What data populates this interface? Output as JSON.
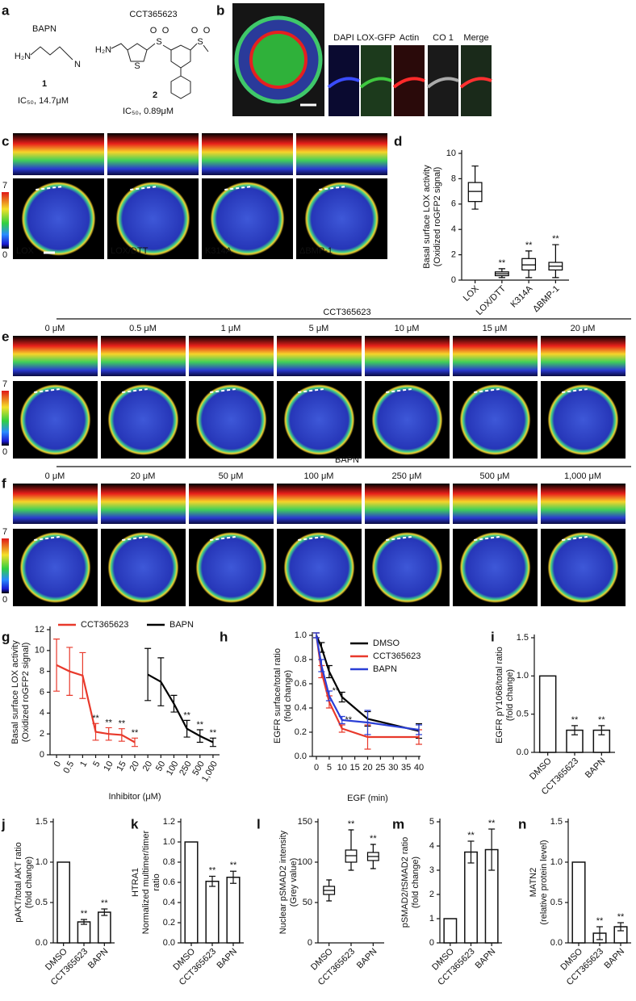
{
  "panel_labels": [
    "a",
    "b",
    "c",
    "d",
    "e",
    "f",
    "g",
    "h",
    "i",
    "j",
    "k",
    "l",
    "m",
    "n"
  ],
  "compounds": [
    {
      "name": "BAPN",
      "number": "1",
      "ic50": "IC₅₀, 14.7μM",
      "atoms": [
        "H₂N",
        "N"
      ]
    },
    {
      "name": "CCT365623",
      "number": "2",
      "ic50": "IC₅₀, 0.89μM",
      "atoms": [
        "H₂N",
        "S",
        "S",
        "O",
        "O",
        "S",
        "O",
        "O"
      ]
    }
  ],
  "panel_b": {
    "channels": [
      {
        "name": "DAPI",
        "color": "#3a4cff"
      },
      {
        "name": "LOX-GFP",
        "color": "#3fc83f"
      },
      {
        "name": "Actin",
        "color": "#ff2a2a"
      },
      {
        "name": "CO 1",
        "color": "#aaaaaa"
      },
      {
        "name": "Merge",
        "color": "#111111"
      }
    ]
  },
  "panel_c": {
    "labels": [
      "LOX",
      "LOX/DTT",
      "K314A",
      "ΔBMP-1"
    ],
    "colorbar": [
      0,
      7
    ]
  },
  "panel_e": {
    "title": "CCT365623",
    "labels": [
      "0 μM",
      "0.5 μM",
      "1 μM",
      "5 μM",
      "10 μM",
      "15 μM",
      "20 μM"
    ],
    "colorbar": [
      0,
      7
    ]
  },
  "panel_f": {
    "title": "BAPN",
    "labels": [
      "0 μM",
      "20 μM",
      "50 μM",
      "100 μM",
      "250 μM",
      "500 μM",
      "1,000 μM"
    ],
    "colorbar": [
      0,
      7
    ]
  },
  "chart_data": [
    {
      "type": "box",
      "ylabel": [
        "Basal surface LOX activity",
        "(Oxidized roGFP2 signal)"
      ],
      "categories": [
        "LOX",
        "LOX/DTT",
        "K314A",
        "ΔBMP-1"
      ],
      "min": [
        5.6,
        0.2,
        0.2,
        0.2
      ],
      "q1": [
        6.2,
        0.35,
        0.8,
        0.8
      ],
      "median": [
        7,
        0.5,
        1.2,
        1.1
      ],
      "q3": [
        7.7,
        0.65,
        1.7,
        1.4
      ],
      "max": [
        9,
        0.9,
        2.3,
        2.8
      ],
      "annotations": [
        null,
        "**",
        "**",
        "**"
      ],
      "ylim": [
        0,
        10
      ],
      "yticks": [
        0,
        2,
        4,
        6,
        8,
        10
      ],
      "color": "#000000"
    },
    {
      "type": "line",
      "ylabel": [
        "Basal surface LOX activity",
        "(Oxidized roGFP2 signal)"
      ],
      "xlabel": "Inhibitor (μM)",
      "categories": [
        "0",
        "0.5",
        "1",
        "5",
        "10",
        "15",
        "20",
        "20",
        "50",
        "100",
        "250",
        "500",
        "1,000"
      ],
      "series": [
        {
          "name": "CCT365623",
          "color": "#e8392b",
          "values": [
            8.6,
            8,
            7.6,
            2.2,
            2,
            1.9,
            1.2,
            null,
            null,
            null,
            null,
            null,
            null
          ],
          "errors": [
            2.5,
            2.3,
            2.2,
            0.8,
            0.6,
            0.6,
            0.4,
            null,
            null,
            null,
            null,
            null,
            null
          ],
          "annotations": [
            null,
            null,
            null,
            "**",
            "**",
            "**",
            "**",
            null,
            null,
            null,
            null,
            null,
            null
          ]
        },
        {
          "name": "BAPN",
          "color": "#000000",
          "values": [
            null,
            null,
            null,
            null,
            null,
            null,
            null,
            7.7,
            7,
            4.9,
            2.5,
            1.8,
            1.2
          ],
          "errors": [
            null,
            null,
            null,
            null,
            null,
            null,
            null,
            2.5,
            2.3,
            0.8,
            0.8,
            0.6,
            0.4
          ],
          "annotations": [
            null,
            null,
            null,
            null,
            null,
            null,
            null,
            null,
            null,
            null,
            "**",
            "**",
            "**"
          ]
        }
      ],
      "ylim": [
        0,
        12
      ],
      "yticks": [
        0,
        2,
        4,
        6,
        8,
        10,
        12
      ],
      "legend": "top"
    },
    {
      "type": "line",
      "ylabel": [
        "EGFR surface/total ratio",
        "(fold change)"
      ],
      "xlabel": "EGF (min)",
      "x": [
        0,
        2,
        5,
        10,
        20,
        40
      ],
      "series": [
        {
          "name": "DMSO",
          "color": "#000000",
          "values": [
            1.0,
            0.9,
            0.7,
            0.49,
            0.31,
            0.21
          ],
          "errors": [
            0.02,
            0.04,
            0.05,
            0.04,
            0.06,
            0.06
          ],
          "annotations": [
            null,
            null,
            null,
            null,
            null,
            null
          ]
        },
        {
          "name": "CCT365623",
          "color": "#e8392b",
          "values": [
            1.0,
            0.7,
            0.45,
            0.23,
            0.16,
            0.16
          ],
          "errors": [
            0.02,
            0.05,
            0.05,
            0.03,
            0.1,
            0.06
          ],
          "annotations": [
            null,
            null,
            "**",
            "**",
            null,
            null
          ]
        },
        {
          "name": "BAPN",
          "color": "#2a3fd6",
          "values": [
            1.0,
            0.75,
            0.5,
            0.3,
            0.28,
            0.22
          ],
          "errors": [
            0.02,
            0.05,
            0.04,
            0.03,
            0.1,
            0.04
          ],
          "annotations": [
            null,
            null,
            null,
            null,
            null,
            null
          ]
        }
      ],
      "xlim": [
        0,
        40
      ],
      "xticks": [
        0,
        5,
        10,
        15,
        20,
        25,
        30,
        35,
        40
      ],
      "ylim": [
        0,
        1
      ],
      "yticks": [
        {
          "value": 0,
          "label": "0.0"
        },
        {
          "value": 0.2,
          "label": "0.2"
        },
        {
          "value": 0.4,
          "label": "0.4"
        },
        {
          "value": 0.6,
          "label": "0.6"
        },
        {
          "value": 0.8,
          "label": "0.8"
        },
        {
          "value": 1,
          "label": "1.0"
        }
      ],
      "legend": "upper right"
    },
    {
      "type": "bar",
      "ylabel": [
        "EGFR pY1068/total ratio",
        "(fold change)"
      ],
      "categories": [
        "DMSO",
        "CCT365623",
        "BAPN"
      ],
      "values": [
        1,
        0.29,
        0.29
      ],
      "errors": [
        null,
        0.06,
        0.06
      ],
      "annotations": [
        null,
        "**",
        "**"
      ],
      "ylim": [
        0,
        1.5
      ],
      "yticks": [
        {
          "value": 0,
          "label": "0.0"
        },
        {
          "value": 0.5,
          "label": "0.5"
        },
        {
          "value": 1,
          "label": "1.0"
        },
        {
          "value": 1.5,
          "label": "1.5"
        }
      ],
      "color": "#ffffff"
    },
    {
      "type": "bar",
      "ylabel": [
        "pAKT/total AKT ratio",
        "(fold change)"
      ],
      "categories": [
        "DMSO",
        "CCT365623",
        "BAPN"
      ],
      "values": [
        1,
        0.26,
        0.38
      ],
      "errors": [
        null,
        0.03,
        0.04
      ],
      "annotations": [
        null,
        "**",
        "**"
      ],
      "ylim": [
        0,
        1.5
      ],
      "yticks": [
        {
          "value": 0,
          "label": "0.0"
        },
        {
          "value": 0.5,
          "label": "0.5"
        },
        {
          "value": 1,
          "label": "1.0"
        },
        {
          "value": 1.5,
          "label": "1.5"
        }
      ],
      "color": "#ffffff"
    },
    {
      "type": "bar",
      "ylabel": [
        "HTRA1",
        "Normalized multimer/timer",
        "ratio"
      ],
      "categories": [
        "DMSO",
        "CCT365623",
        "BAPN"
      ],
      "values": [
        1,
        0.61,
        0.65
      ],
      "errors": [
        null,
        0.05,
        0.06
      ],
      "annotations": [
        null,
        "**",
        "**"
      ],
      "ylim": [
        0,
        1.2
      ],
      "yticks": [
        {
          "value": 0,
          "label": "0.0"
        },
        {
          "value": 0.2,
          "label": "0.2"
        },
        {
          "value": 0.4,
          "label": "0.4"
        },
        {
          "value": 0.6,
          "label": "0.6"
        },
        {
          "value": 0.8,
          "label": "0.8"
        },
        {
          "value": 1,
          "label": "1.0"
        },
        {
          "value": 1.2,
          "label": "1.2"
        }
      ],
      "color": "#ffffff"
    },
    {
      "type": "box",
      "ylabel": [
        "Nuclear pSMAD2 intensity",
        "(Grey value)"
      ],
      "categories": [
        "DMSO",
        "CCT365623",
        "BAPN"
      ],
      "min": [
        52,
        90,
        92
      ],
      "q1": [
        60,
        100,
        102
      ],
      "median": [
        65,
        108,
        107
      ],
      "q3": [
        70,
        115,
        112
      ],
      "max": [
        78,
        140,
        122
      ],
      "annotations": [
        null,
        "**",
        "**"
      ],
      "ylim": [
        0,
        150
      ],
      "yticks": [
        0,
        50,
        100,
        150
      ],
      "color": "#000000"
    },
    {
      "type": "bar",
      "ylabel": [
        "pSMAD2/tSMAD2 ratio",
        "(fold change)"
      ],
      "categories": [
        "DMSO",
        "CCT365623",
        "BAPN"
      ],
      "values": [
        1,
        3.75,
        3.85
      ],
      "errors": [
        null,
        0.45,
        0.85
      ],
      "annotations": [
        null,
        "**",
        "**"
      ],
      "ylim": [
        0,
        5
      ],
      "yticks": [
        0,
        1,
        2,
        3,
        4,
        5
      ],
      "color": "#ffffff"
    },
    {
      "type": "bar",
      "ylabel": [
        "MATN2",
        "(relative protein level)"
      ],
      "categories": [
        "DMSO",
        "CCT365623",
        "BAPN"
      ],
      "values": [
        1,
        0.12,
        0.2
      ],
      "errors": [
        null,
        0.08,
        0.05
      ],
      "annotations": [
        null,
        "**",
        "**"
      ],
      "ylim": [
        0,
        1.5
      ],
      "yticks": [
        {
          "value": 0,
          "label": "0.0"
        },
        {
          "value": 0.5,
          "label": "0.5"
        },
        {
          "value": 1,
          "label": "1.0"
        },
        {
          "value": 1.5,
          "label": "1.5"
        }
      ],
      "color": "#ffffff"
    }
  ]
}
